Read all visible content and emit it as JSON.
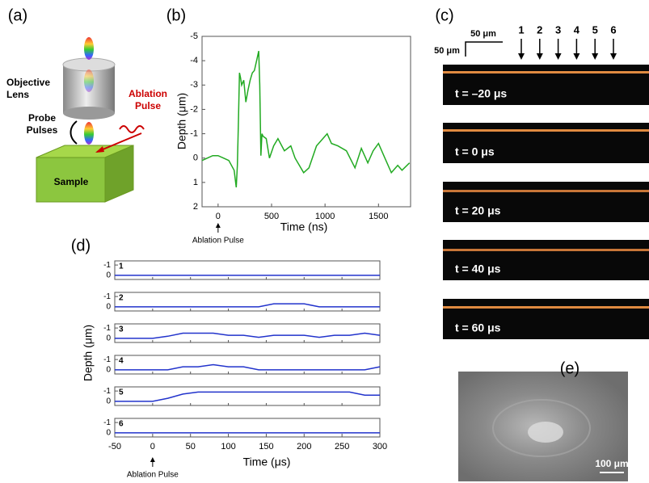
{
  "panel_labels": [
    "(a)",
    "(b)",
    "(c)",
    "(d)",
    "(e)"
  ],
  "diagram": {
    "objective_lens": [
      "Objective",
      "Lens"
    ],
    "ablation_pulse": [
      "Ablation",
      "Pulse"
    ],
    "probe_pulses": [
      "Probe",
      "Pulses"
    ],
    "sample": "Sample"
  },
  "frames": {
    "scale_x": "50 μm",
    "scale_y": "50 μm",
    "markers": [
      "1",
      "2",
      "3",
      "4",
      "5",
      "6"
    ],
    "labels": [
      "t = –20 μs",
      "t = 0 μs",
      "t = 20 μs",
      "t = 40 μs",
      "t = 60 μs"
    ]
  },
  "sem": {
    "scale": "100 μm"
  },
  "chart_data": [
    {
      "type": "line",
      "xlabel": "Time (ns)",
      "ylabel": "Depth (μm)",
      "annotation": "Ablation Pulse",
      "color": "#22aa22",
      "x": [
        -150,
        -100,
        -50,
        0,
        50,
        100,
        150,
        170,
        180,
        190,
        200,
        210,
        220,
        240,
        260,
        280,
        300,
        320,
        340,
        360,
        380,
        390,
        400,
        410,
        420,
        450,
        480,
        520,
        560,
        620,
        680,
        720,
        760,
        800,
        850,
        920,
        980,
        1020,
        1060,
        1120,
        1200,
        1280,
        1340,
        1400,
        1450,
        1500,
        1560,
        1620,
        1680,
        1720,
        1790
      ],
      "values": [
        0.1,
        0,
        -0.1,
        -0.1,
        0,
        0.1,
        0.5,
        1.2,
        0.3,
        -1.5,
        -3.5,
        -3.3,
        -3,
        -3.2,
        -2.3,
        -2.8,
        -3.2,
        -3.5,
        -3.6,
        -4,
        -4.4,
        -3,
        -0.1,
        -1,
        -0.9,
        -0.8,
        0,
        -0.5,
        -0.8,
        -0.3,
        -0.5,
        0,
        0.3,
        0.6,
        0.4,
        -0.5,
        -0.8,
        -1,
        -0.6,
        -0.5,
        -0.3,
        0.4,
        -0.4,
        0.2,
        -0.3,
        -0.6,
        0,
        0.6,
        0.3,
        0.5,
        0.2
      ],
      "xlim": [
        -150,
        1800
      ],
      "xticks": [
        0,
        500,
        1000,
        1500
      ],
      "ylim": [
        2,
        -5
      ],
      "yticks": [
        -5,
        -4,
        -3,
        -2,
        -1,
        0,
        1,
        2
      ]
    },
    {
      "type": "strips",
      "xlabel": "Time (μs)",
      "ylabel": "Depth (μm)",
      "annotation": "Ablation Pulse",
      "color": "#2233cc",
      "x": [
        -50,
        0,
        20,
        40,
        60,
        80,
        100,
        120,
        140,
        160,
        180,
        200,
        220,
        240,
        260,
        280,
        300
      ],
      "series": [
        {
          "name": "1",
          "values": [
            0,
            0,
            0,
            0,
            0,
            0,
            0,
            0,
            0,
            0,
            0,
            0,
            0,
            0,
            0,
            0,
            0
          ]
        },
        {
          "name": "2",
          "values": [
            0,
            0,
            0,
            0,
            0,
            0,
            0,
            0,
            0,
            -0.3,
            -0.3,
            -0.3,
            0,
            0,
            0,
            0,
            0
          ]
        },
        {
          "name": "3",
          "values": [
            0,
            0,
            -0.2,
            -0.5,
            -0.5,
            -0.5,
            -0.3,
            -0.3,
            -0.1,
            -0.3,
            -0.3,
            -0.3,
            -0.1,
            -0.3,
            -0.3,
            -0.5,
            -0.3
          ]
        },
        {
          "name": "4",
          "values": [
            0,
            0,
            0,
            -0.3,
            -0.3,
            -0.5,
            -0.3,
            -0.3,
            0,
            0,
            0,
            0,
            0,
            0,
            0,
            0,
            -0.3
          ]
        },
        {
          "name": "5",
          "values": [
            0,
            0,
            -0.3,
            -0.7,
            -0.9,
            -0.9,
            -0.9,
            -0.9,
            -0.9,
            -0.9,
            -0.9,
            -0.9,
            -0.9,
            -0.9,
            -0.9,
            -0.6,
            -0.6
          ]
        },
        {
          "name": "6",
          "values": [
            0,
            0,
            0,
            0,
            0,
            0,
            0,
            0,
            0,
            0,
            0,
            0,
            0,
            0,
            0,
            0,
            0
          ]
        }
      ],
      "xlim": [
        -50,
        300
      ],
      "xticks": [
        -50,
        0,
        50,
        100,
        150,
        200,
        250,
        300
      ],
      "ylim": [
        0.4,
        -1.4
      ],
      "yticks": [
        -1,
        0
      ]
    }
  ]
}
